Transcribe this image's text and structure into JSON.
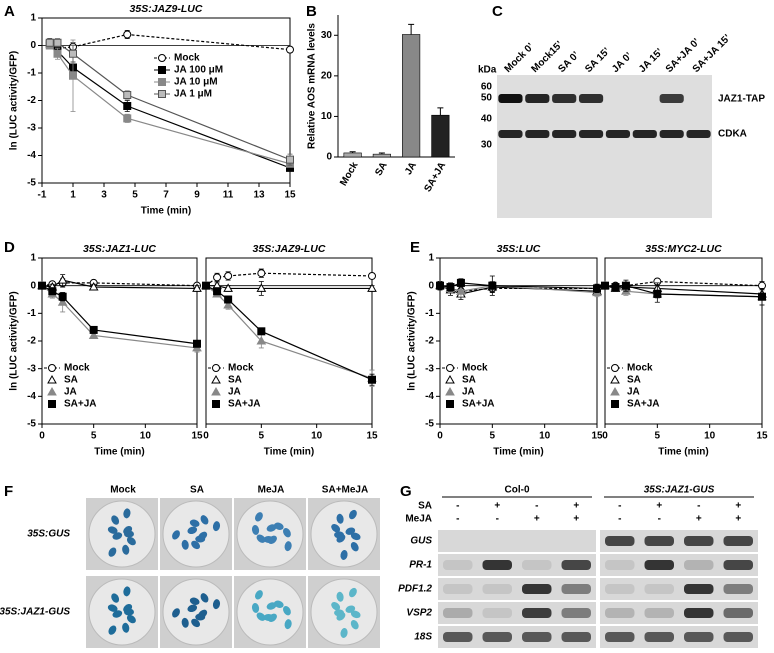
{
  "panel_labels": [
    "A",
    "B",
    "C",
    "D",
    "E",
    "F",
    "G"
  ],
  "chart_data": [
    {
      "type": "line",
      "title": "35S:JAZ9-LUC",
      "x_label": "Time (min)",
      "y_label": "ln (LUC activity/GFP)",
      "x": [
        -0.5,
        0,
        1,
        4.5,
        15
      ],
      "xlim": [
        -1,
        15
      ],
      "xticks": [
        -1,
        1,
        3,
        5,
        7,
        9,
        11,
        13,
        15
      ],
      "ylim": [
        -5,
        1
      ],
      "yticks": [
        1,
        0,
        -1,
        -2,
        -3,
        -4,
        -5
      ],
      "legend": "upper right",
      "series": [
        {
          "name": "Mock",
          "color": "#000000",
          "fill": "#ffffff",
          "marker": "circle",
          "dash": true,
          "values": [
            0.1,
            -0.1,
            -0.05,
            0.4,
            -0.15
          ],
          "errors": [
            0.15,
            0.1,
            0.15,
            0.15,
            0.1
          ]
        },
        {
          "name": "JA 100 μM",
          "color": "#000000",
          "fill": "#000000",
          "marker": "square",
          "dash": false,
          "values": [
            0.05,
            -0.2,
            -0.8,
            -2.2,
            -4.45
          ],
          "errors": [
            0.1,
            0.15,
            0.2,
            0.2,
            0.1
          ]
        },
        {
          "name": "JA 10 μM",
          "color": "#888888",
          "fill": "#888888",
          "marker": "square",
          "dash": false,
          "values": [
            0,
            -0.3,
            -1.1,
            -2.65,
            -4.3
          ],
          "errors": [
            0.1,
            0.2,
            1.3,
            0.15,
            0.1
          ]
        },
        {
          "name": "JA 1 μM",
          "color": "#555555",
          "fill": "#bbbbbb",
          "marker": "square",
          "dash": false,
          "values": [
            0.1,
            0.1,
            -0.3,
            -1.8,
            -4.15
          ],
          "errors": [
            0.1,
            0.15,
            0.3,
            0.15,
            0.2
          ]
        }
      ]
    },
    {
      "type": "bar",
      "y_label": "Relative AOS mRNA levels",
      "categories": [
        "Mock",
        "SA",
        "JA",
        "SA+JA"
      ],
      "values": [
        1,
        0.7,
        30.2,
        10.3
      ],
      "errors": [
        0.3,
        0.3,
        2.5,
        1.8
      ],
      "colors": [
        "#aaaaaa",
        "#aaaaaa",
        "#888888",
        "#222222"
      ],
      "ylim": [
        0,
        35
      ],
      "yticks": [
        0,
        10,
        20,
        30
      ]
    },
    {
      "type": "line",
      "title": "35S:JAZ1-LUC",
      "x_label": "Time (min)",
      "y_label": "ln (LUC activity/GFP)",
      "x": [
        0,
        1,
        2,
        5,
        15
      ],
      "xlim": [
        0,
        15
      ],
      "xticks": [
        0,
        5,
        10,
        15
      ],
      "ylim": [
        -5,
        1
      ],
      "yticks": [
        1,
        0,
        -1,
        -2,
        -3,
        -4,
        -5
      ],
      "legend": "lower left",
      "series": [
        {
          "name": "Mock",
          "color": "#000000",
          "fill": "#ffffff",
          "marker": "circle",
          "dash": true,
          "values": [
            0,
            0.05,
            0.1,
            0.1,
            0
          ],
          "errors": [
            0.1,
            0.1,
            0.15,
            0.1,
            0.1
          ]
        },
        {
          "name": "SA",
          "color": "#000000",
          "fill": "#ffffff",
          "marker": "triangle",
          "dash": false,
          "values": [
            0,
            -0.05,
            0.2,
            -0.05,
            -0.1
          ],
          "errors": [
            0.1,
            0.1,
            0.2,
            0.1,
            0.1
          ]
        },
        {
          "name": "JA",
          "color": "#888888",
          "fill": "#888888",
          "marker": "triangle",
          "dash": false,
          "values": [
            0,
            -0.3,
            -0.6,
            -1.8,
            -2.25
          ],
          "errors": [
            0.1,
            0.15,
            0.35,
            0.1,
            0.15
          ]
        },
        {
          "name": "SA+JA",
          "color": "#000000",
          "fill": "#000000",
          "marker": "square",
          "dash": false,
          "values": [
            0,
            -0.2,
            -0.4,
            -1.6,
            -2.1
          ],
          "errors": [
            0.1,
            0.1,
            0.15,
            0.1,
            0.1
          ]
        }
      ]
    },
    {
      "type": "line",
      "title": "35S:JAZ9-LUC",
      "x_label": "Time (min)",
      "x": [
        0,
        1,
        2,
        5,
        15
      ],
      "xlim": [
        0,
        15
      ],
      "xticks": [
        0,
        5,
        10,
        15
      ],
      "ylim": [
        -5,
        1
      ],
      "legend": "lower left",
      "series": [
        {
          "name": "Mock",
          "color": "#000000",
          "fill": "#ffffff",
          "marker": "circle",
          "dash": true,
          "values": [
            0,
            0.3,
            0.35,
            0.45,
            0.35
          ],
          "errors": [
            0.1,
            0.15,
            0.15,
            0.15,
            0.1
          ]
        },
        {
          "name": "SA",
          "color": "#000000",
          "fill": "#ffffff",
          "marker": "triangle",
          "dash": false,
          "values": [
            0,
            0,
            -0.1,
            -0.1,
            -0.1
          ],
          "errors": [
            0.1,
            0.1,
            0.1,
            0.25,
            0.1
          ]
        },
        {
          "name": "JA",
          "color": "#888888",
          "fill": "#888888",
          "marker": "triangle",
          "dash": false,
          "values": [
            0,
            -0.3,
            -0.7,
            -2.0,
            -3.35
          ],
          "errors": [
            0.1,
            0.1,
            0.15,
            0.25,
            0.3
          ]
        },
        {
          "name": "SA+JA",
          "color": "#000000",
          "fill": "#000000",
          "marker": "square",
          "dash": false,
          "values": [
            0,
            -0.2,
            -0.5,
            -1.65,
            -3.4
          ],
          "errors": [
            0.1,
            0.1,
            0.1,
            0.1,
            0.2
          ]
        }
      ]
    },
    {
      "type": "line",
      "title": "35S:LUC",
      "x_label": "Time (min)",
      "y_label": "ln (LUC activity/GFP)",
      "x": [
        0,
        1,
        2,
        5,
        15
      ],
      "xlim": [
        0,
        15
      ],
      "xticks": [
        0,
        5,
        10,
        15
      ],
      "ylim": [
        -5,
        1
      ],
      "yticks": [
        1,
        0,
        -1,
        -2,
        -3,
        -4,
        -5
      ],
      "legend": "lower left",
      "series": [
        {
          "name": "Mock",
          "color": "#000000",
          "fill": "#ffffff",
          "marker": "circle",
          "dash": true,
          "values": [
            0,
            -0.1,
            -0.2,
            -0.1,
            -0.1
          ],
          "errors": [
            0.15,
            0.15,
            0.15,
            0.1,
            0.15
          ]
        },
        {
          "name": "SA",
          "color": "#000000",
          "fill": "#ffffff",
          "marker": "triangle",
          "dash": false,
          "values": [
            0,
            -0.15,
            -0.3,
            -0.05,
            -0.2
          ],
          "errors": [
            0.15,
            0.2,
            0.2,
            0.2,
            0.15
          ]
        },
        {
          "name": "JA",
          "color": "#888888",
          "fill": "#888888",
          "marker": "triangle",
          "dash": false,
          "values": [
            0,
            -0.1,
            -0.2,
            0,
            -0.25
          ],
          "errors": [
            0.1,
            0.15,
            0.2,
            0.15,
            0.15
          ]
        },
        {
          "name": "SA+JA",
          "color": "#000000",
          "fill": "#000000",
          "marker": "square",
          "dash": false,
          "values": [
            0,
            -0.05,
            0.1,
            0,
            -0.1
          ],
          "errors": [
            0.1,
            0.15,
            0.15,
            0.35,
            0.15
          ]
        }
      ]
    },
    {
      "type": "line",
      "title": "35S:MYC2-LUC",
      "x_label": "Time (min)",
      "x": [
        0,
        1,
        2,
        5,
        15
      ],
      "xlim": [
        0,
        15
      ],
      "xticks": [
        0,
        5,
        10,
        15
      ],
      "ylim": [
        -5,
        1
      ],
      "legend": "lower left",
      "series": [
        {
          "name": "Mock",
          "color": "#000000",
          "fill": "#ffffff",
          "marker": "circle",
          "dash": true,
          "values": [
            0,
            0,
            0,
            0.15,
            0
          ],
          "errors": [
            0.1,
            0.1,
            0.1,
            0.1,
            0.15
          ]
        },
        {
          "name": "SA",
          "color": "#000000",
          "fill": "#ffffff",
          "marker": "triangle",
          "dash": false,
          "values": [
            0,
            -0.1,
            -0.05,
            -0.1,
            -0.3
          ],
          "errors": [
            0.1,
            0.1,
            0.15,
            0.2,
            0.2
          ]
        },
        {
          "name": "JA",
          "color": "#888888",
          "fill": "#888888",
          "marker": "triangle",
          "dash": false,
          "values": [
            0,
            -0.05,
            -0.2,
            -0.3,
            -0.4
          ],
          "errors": [
            0.1,
            0.1,
            0.15,
            0.15,
            0.3
          ]
        },
        {
          "name": "SA+JA",
          "color": "#000000",
          "fill": "#000000",
          "marker": "square",
          "dash": false,
          "values": [
            0,
            -0.05,
            0,
            -0.3,
            -0.4
          ],
          "errors": [
            0.1,
            0.15,
            0.2,
            0.3,
            0.3
          ]
        }
      ]
    }
  ],
  "blot_e": {
    "kda_label": "kDa",
    "markers": [
      "60",
      "50",
      "40",
      "30"
    ],
    "lanes": [
      "Mock 0’",
      "Mock15’",
      "SA 0’",
      "SA 15’",
      "JA 0’",
      "JA 15’",
      "SA+JA 0’",
      "SA+JA 15’"
    ],
    "bands": [
      "JAZ1-TAP",
      "CDKA"
    ]
  },
  "panel_f": {
    "columns": [
      "Mock",
      "SA",
      "MeJA",
      "SA+MeJA"
    ],
    "rows": [
      "35S:GUS",
      "35S:JAZ1-GUS"
    ]
  },
  "panel_g": {
    "groups": [
      "Col-0",
      "35S:JAZ1-GUS"
    ],
    "treatments": [
      {
        "name": "SA",
        "signs": [
          "-",
          "+",
          "-",
          "+",
          "-",
          "+",
          "-",
          "+"
        ]
      },
      {
        "name": "MeJA",
        "signs": [
          "-",
          "-",
          "+",
          "+",
          "-",
          "-",
          "+",
          "+"
        ]
      }
    ],
    "genes": [
      "GUS",
      "PR-1",
      "PDF1.2",
      "VSP2",
      "18S"
    ]
  }
}
